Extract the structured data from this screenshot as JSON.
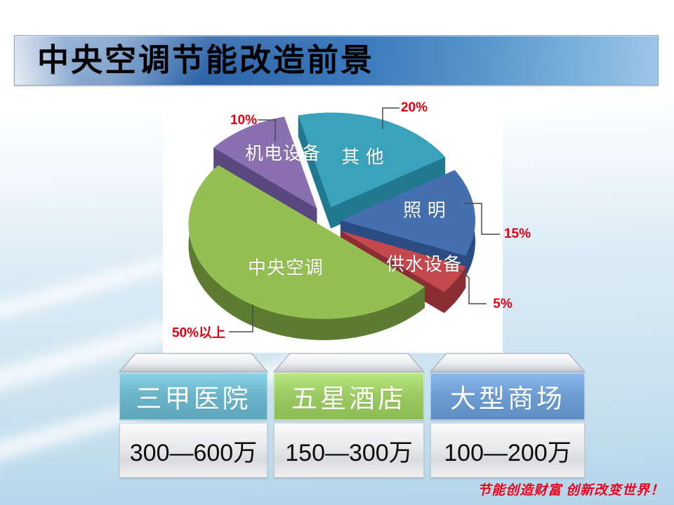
{
  "slide": {
    "title": "中央空调节能改造前景",
    "motto": "节能创造财富 创新改变世界！"
  },
  "chart_data": {
    "type": "pie",
    "style": "3d-exploded-pie",
    "title": "",
    "unit": "percent share of building energy consumption",
    "legend": "none",
    "labels_on_slices": true,
    "slices": [
      {
        "label": "其 他",
        "value": 20,
        "pct_label": "20%",
        "color": "#3aa2ba",
        "wall": "#20798f"
      },
      {
        "label": "照 明",
        "value": 15,
        "pct_label": "15%",
        "color": "#4470b0",
        "wall": "#2a4c82"
      },
      {
        "label": "供水设备",
        "value": 5,
        "pct_label": "5%",
        "color": "#c4494e",
        "wall": "#8a2e33"
      },
      {
        "label": "中央空调",
        "value": 50,
        "pct_label": "50%以上",
        "color": "#94bf52",
        "wall": "#5d7b31"
      },
      {
        "label": "机电设备",
        "value": 10,
        "pct_label": "10%",
        "color": "#8a70b0",
        "wall": "#5a477e"
      }
    ]
  },
  "table": {
    "columns": [
      {
        "header": "三甲医院",
        "value": "300—600万",
        "header_color": "#6ab5c9"
      },
      {
        "header": "五星酒店",
        "value": "150—300万",
        "header_color": "#9cca62"
      },
      {
        "header": "大型商场",
        "value": "100—200万",
        "header_color": "#6d9cd3"
      }
    ]
  }
}
